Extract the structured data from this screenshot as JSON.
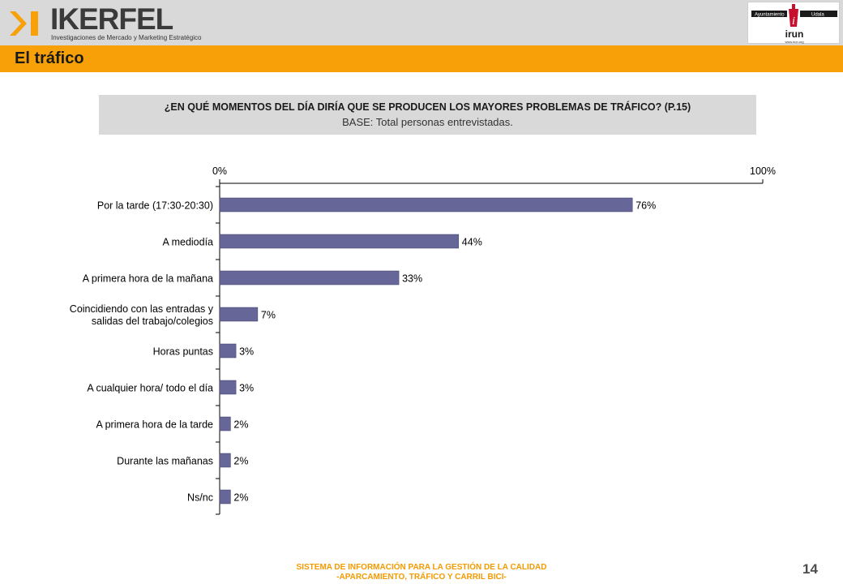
{
  "header": {
    "brand_name": "IKERFEL",
    "brand_tagline": "Investigaciones de Mercado y Marketing Estratégico",
    "city_logo": {
      "left_label": "Ayuntamiento",
      "right_label": "Udala",
      "name": "irun",
      "url": "www.irun.org"
    }
  },
  "section_title": "El tráfico",
  "question": {
    "text": "¿EN QUÉ MOMENTOS DEL DÍA DIRÍA QUE SE PRODUCEN LOS MAYORES PROBLEMAS DE TRÁFICO? (P.15)",
    "base": "BASE: Total personas entrevistadas."
  },
  "chart_data": {
    "type": "bar",
    "orientation": "horizontal",
    "categories": [
      "Por la tarde (17:30-20:30)",
      "A mediodía",
      "A primera hora de la mañana",
      "Coincidiendo con las entradas y salidas del trabajo/colegios",
      "Horas puntas",
      "A cualquier hora/ todo el día",
      "A primera hora de la tarde",
      "Durante las mañanas",
      "Ns/nc"
    ],
    "category_lines": [
      [
        "Por la tarde (17:30-20:30)"
      ],
      [
        "A mediodía"
      ],
      [
        "A primera hora de la mañana"
      ],
      [
        "Coincidiendo con las entradas y",
        "salidas del trabajo/colegios"
      ],
      [
        "Horas puntas"
      ],
      [
        "A cualquier hora/ todo el día"
      ],
      [
        "A primera hora de la tarde"
      ],
      [
        "Durante las mañanas"
      ],
      [
        "Ns/nc"
      ]
    ],
    "values": [
      76,
      44,
      33,
      7,
      3,
      3,
      2,
      2,
      2
    ],
    "value_labels": [
      "76%",
      "44%",
      "33%",
      "7%",
      "3%",
      "3%",
      "2%",
      "2%",
      "2%"
    ],
    "xlim": [
      0,
      100
    ],
    "x_tick_labels": [
      "0%",
      "100%"
    ],
    "bar_color": "#666699",
    "grid": false
  },
  "footer": {
    "line1": "SISTEMA DE INFORMACIÓN PARA LA GESTIÓN DE LA CALIDAD",
    "line2": "-APARCAMIENTO, TRÁFICO Y CARRIL BICI-",
    "page_number": "14"
  },
  "colors": {
    "title_bar": "#f7a007",
    "header_bar": "#d9d9d9",
    "question_box": "#d9d9d9",
    "footer_text": "#f39a00",
    "city_red": "#c8102e"
  }
}
